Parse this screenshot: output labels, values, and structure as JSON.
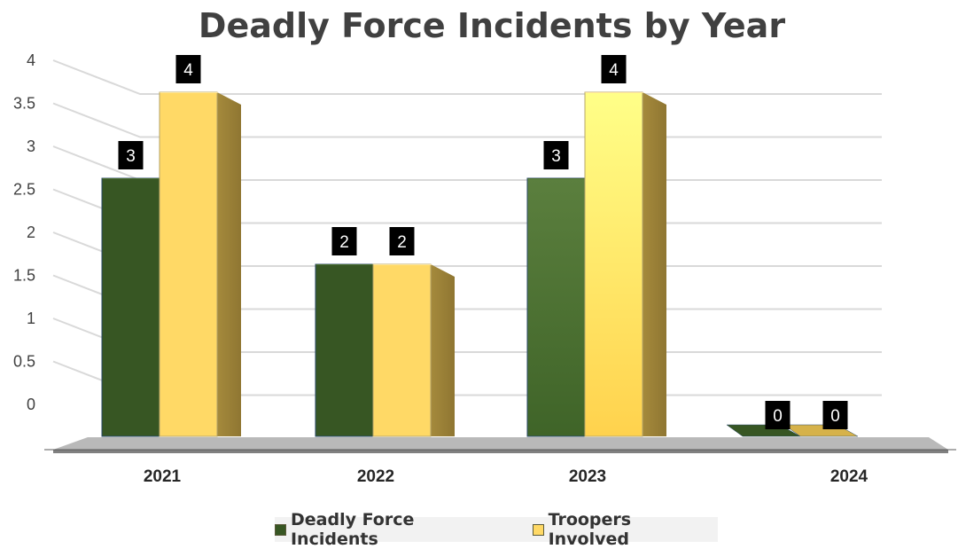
{
  "chart_data": {
    "type": "bar",
    "title": "Deadly Force Incidents by Year",
    "categories": [
      "2021",
      "2022",
      "2023",
      "2024"
    ],
    "series": [
      {
        "name": "Deadly Force Incidents",
        "values": [
          3,
          2,
          3,
          0
        ],
        "color": "#375623"
      },
      {
        "name": "Troopers Involved",
        "values": [
          4,
          2,
          4,
          0
        ],
        "color": "#ffd966"
      }
    ],
    "ylim": [
      0,
      4
    ],
    "yticks": [
      "0",
      "0.5",
      "1",
      "1.5",
      "2",
      "2.5",
      "3",
      "3.5",
      "4"
    ],
    "grid": true,
    "data_labels": true,
    "legend_position": "bottom",
    "style": "3d-column"
  }
}
